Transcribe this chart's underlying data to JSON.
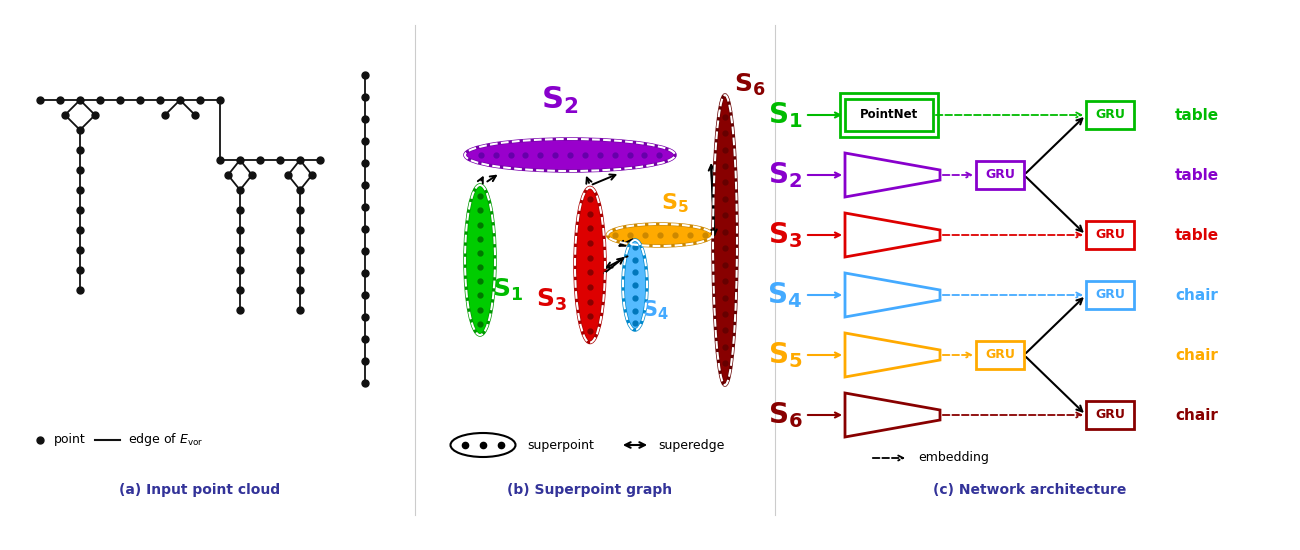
{
  "background_color": "#ffffff",
  "panel_a_title": "(a) Input point cloud",
  "panel_b_title": "(b) Superpoint graph",
  "panel_c_title": "(c) Network architecture",
  "colors_s": {
    "S1": "#00bb00",
    "S2": "#8800cc",
    "S3": "#dd0000",
    "S4": "#44aaff",
    "S5": "#ffaa00",
    "S6": "#880000"
  },
  "labels_right": {
    "S1": "table",
    "S2": "table",
    "S3": "table",
    "S4": "chair",
    "S5": "chair",
    "S6": "chair"
  }
}
